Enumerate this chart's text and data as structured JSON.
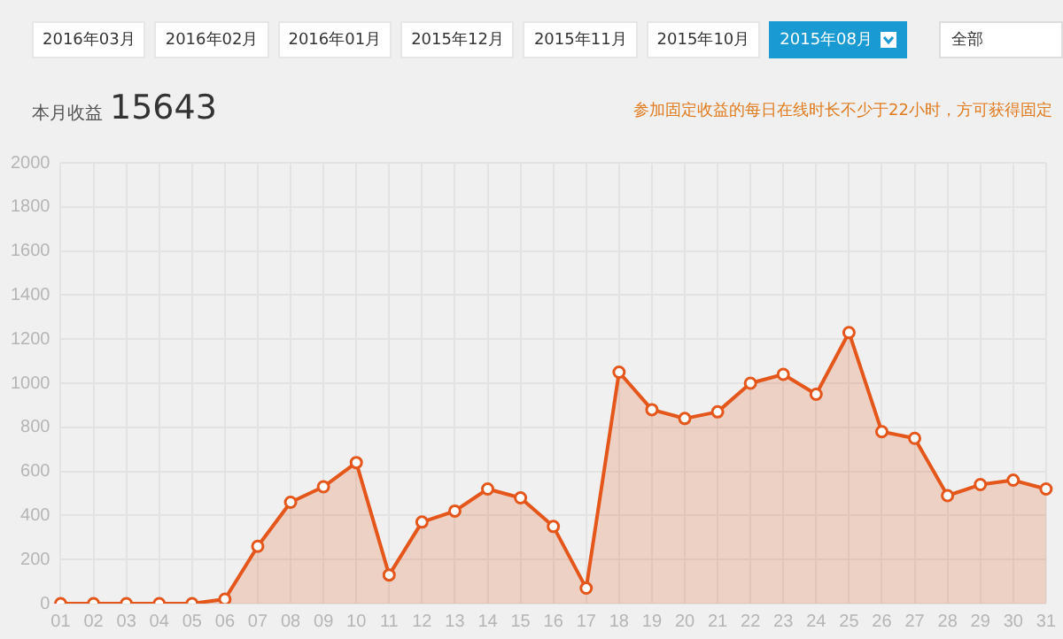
{
  "chart_data": {
    "type": "area",
    "title": "本月收益",
    "categories": [
      "01",
      "02",
      "03",
      "04",
      "05",
      "06",
      "07",
      "08",
      "09",
      "10",
      "11",
      "12",
      "13",
      "14",
      "15",
      "16",
      "17",
      "18",
      "19",
      "20",
      "21",
      "22",
      "23",
      "24",
      "25",
      "26",
      "27",
      "28",
      "29",
      "30",
      "31"
    ],
    "series": [
      {
        "color": "#e4561a",
        "values": [
          0,
          0,
          0,
          0,
          0,
          20,
          260,
          460,
          530,
          640,
          130,
          370,
          420,
          520,
          480,
          350,
          70,
          1050,
          880,
          840,
          870,
          1000,
          1040,
          950,
          1230,
          780,
          750,
          490,
          540,
          560,
          520
        ]
      }
    ],
    "ylim": [
      0,
      2000
    ],
    "yticks": [
      0,
      200,
      400,
      600,
      800,
      1000,
      1200,
      1400,
      1600,
      1800,
      2000
    ],
    "grid": true,
    "marker": "circle",
    "legend": false,
    "annotations": [
      "2016年03月",
      "2016年02月",
      "2016年01月",
      "2015年12月",
      "2015年11月",
      "2015年10月",
      "2015年08月",
      "全部",
      "15643",
      "参加固定收益的每日在线时长不少于22小时，方可获得固定"
    ]
  }
}
